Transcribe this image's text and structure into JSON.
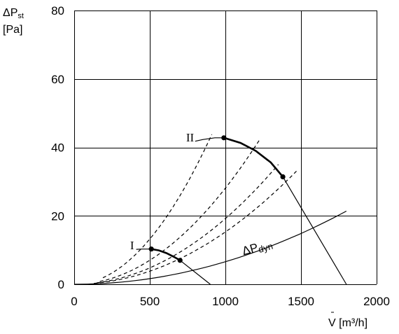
{
  "chart_data": {
    "type": "line",
    "ylabel_symbol": "ΔP",
    "ylabel_subscript": "st",
    "ylabel_unit": "[Pa]",
    "xlabel_symbol": "V",
    "xlabel_unit": " [m³/h]",
    "xlim": [
      0,
      2000
    ],
    "ylim": [
      0,
      80
    ],
    "x_ticks": [
      0,
      500,
      1000,
      1500,
      2000
    ],
    "y_ticks": [
      0,
      20,
      40,
      60,
      80
    ],
    "grid": true,
    "curve_labels": {
      "I": {
        "text": "I",
        "x": 370,
        "y": 11.5
      },
      "II": {
        "text": "II",
        "x": 740,
        "y": 43
      },
      "dyn": {
        "text": "ΔP",
        "sub": "dyn",
        "x": 1120,
        "y": 8.5
      }
    },
    "series": [
      {
        "id": "operating-II",
        "style": "bold",
        "x": [
          990,
          1100,
          1200,
          1300,
          1380
        ],
        "y": [
          42.8,
          41.3,
          39,
          35.6,
          31.4
        ]
      },
      {
        "id": "curve-II-tail-left",
        "style": "thin",
        "x": [
          800,
          850,
          930,
          990
        ],
        "y": [
          41.8,
          42.3,
          42.8,
          42.8
        ]
      },
      {
        "id": "curve-II-tail-right",
        "style": "thin",
        "x": [
          1380,
          1800
        ],
        "y": [
          31.4,
          0
        ]
      },
      {
        "id": "operating-I",
        "style": "bold",
        "x": [
          510,
          560,
          610,
          660,
          700
        ],
        "y": [
          10.3,
          9.9,
          9.1,
          8,
          7
        ]
      },
      {
        "id": "curve-I-tail-left",
        "style": "thin",
        "x": [
          410,
          450,
          510
        ],
        "y": [
          10.2,
          10.3,
          10.3
        ]
      },
      {
        "id": "curve-I-tail-right",
        "style": "thin",
        "x": [
          700,
          900
        ],
        "y": [
          7,
          0
        ]
      },
      {
        "id": "system-1",
        "style": "dashed",
        "x0": 190,
        "x1": 910,
        "k": 52.9
      },
      {
        "id": "system-2",
        "style": "dashed",
        "x0": 170,
        "x1": 1230,
        "k": 28.1
      },
      {
        "id": "system-3",
        "style": "dashed",
        "x0": 150,
        "x1": 1350,
        "k": 19.2
      },
      {
        "id": "system-4",
        "style": "dashed",
        "x0": 130,
        "x1": 1470,
        "k": 15.3
      },
      {
        "id": "dynamic-pressure",
        "style": "thin",
        "x0": 0,
        "x1": 1800,
        "k": 6.6
      }
    ],
    "markers": [
      {
        "x": 990,
        "y": 42.8
      },
      {
        "x": 1380,
        "y": 31.4
      },
      {
        "x": 510,
        "y": 10.3
      },
      {
        "x": 700,
        "y": 7
      }
    ]
  }
}
